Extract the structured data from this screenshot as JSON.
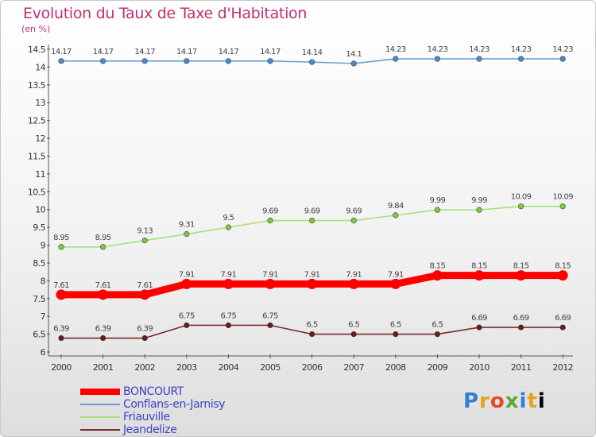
{
  "chart_data": {
    "type": "line",
    "title": "Evolution du Taux de Taxe d'Habitation",
    "ylabel": "(en %)",
    "xlabel": "",
    "ylim": [
      6,
      14.5
    ],
    "yticks": [
      6,
      6.5,
      7,
      7.5,
      8,
      8.5,
      9,
      9.5,
      10,
      10.5,
      11,
      11.5,
      12,
      12.5,
      13,
      13.5,
      14,
      14.5
    ],
    "ytick_labels": [
      "6",
      "6.5",
      "7",
      "7.5",
      "8",
      "8.5",
      "9",
      "9.5",
      "10",
      "10.5",
      "11",
      "11.5",
      "12",
      "12.5",
      "13",
      "13.5",
      "14",
      "14.5"
    ],
    "x": [
      "2000",
      "2001",
      "2002",
      "2003",
      "2004",
      "2005",
      "2006",
      "2007",
      "2008",
      "2009",
      "2010",
      "2011",
      "2012"
    ],
    "legend_position": "bottom-left",
    "grid": false,
    "series": [
      {
        "name": "BONCOURT",
        "color": "#ff0000",
        "marker_color": "#ff0000",
        "emphasis": true,
        "values": [
          7.61,
          7.61,
          7.61,
          7.91,
          7.91,
          7.91,
          7.91,
          7.91,
          7.91,
          8.15,
          8.15,
          8.15,
          8.15
        ],
        "labels": [
          "7.61",
          "7.61",
          "7.61",
          "7.91",
          "7.91",
          "7.91",
          "7.91",
          "7.91",
          "7.91",
          "8.15",
          "8.15",
          "8.15",
          "8.15"
        ]
      },
      {
        "name": "Conflans-en-Jarnisy",
        "color": "#6a9fd8",
        "marker_color": "#4a8ad0",
        "emphasis": false,
        "values": [
          14.17,
          14.17,
          14.17,
          14.17,
          14.17,
          14.17,
          14.14,
          14.1,
          14.23,
          14.23,
          14.23,
          14.23,
          14.23
        ],
        "labels": [
          "14.17",
          "14.17",
          "14.17",
          "14.17",
          "14.17",
          "14.17",
          "14.14",
          "14.1",
          "14.23",
          "14.23",
          "14.23",
          "14.23",
          "14.23"
        ]
      },
      {
        "name": "Friauville",
        "color": "#a8e07a",
        "marker_color": "#7bcc3c",
        "emphasis": false,
        "values": [
          8.95,
          8.95,
          9.13,
          9.31,
          9.5,
          9.69,
          9.69,
          9.69,
          9.84,
          9.99,
          9.99,
          10.09,
          10.09
        ],
        "labels": [
          "8.95",
          "8.95",
          "9.13",
          "9.31",
          "9.5",
          "9.69",
          "9.69",
          "9.69",
          "9.84",
          "9.99",
          "9.99",
          "10.09",
          "10.09"
        ]
      },
      {
        "name": "Jeandelize",
        "color": "#7a2a2a",
        "marker_color": "#6a1a1a",
        "emphasis": false,
        "values": [
          6.39,
          6.39,
          6.39,
          6.75,
          6.75,
          6.75,
          6.5,
          6.5,
          6.5,
          6.5,
          6.69,
          6.69,
          6.69
        ],
        "labels": [
          "6.39",
          "6.39",
          "6.39",
          "6.75",
          "6.75",
          "6.75",
          "6.5",
          "6.5",
          "6.5",
          "6.5",
          "6.69",
          "6.69",
          "6.69"
        ]
      }
    ]
  },
  "logo": {
    "letters": [
      "P",
      "r",
      "o",
      "x",
      "i",
      "t",
      "i"
    ]
  }
}
